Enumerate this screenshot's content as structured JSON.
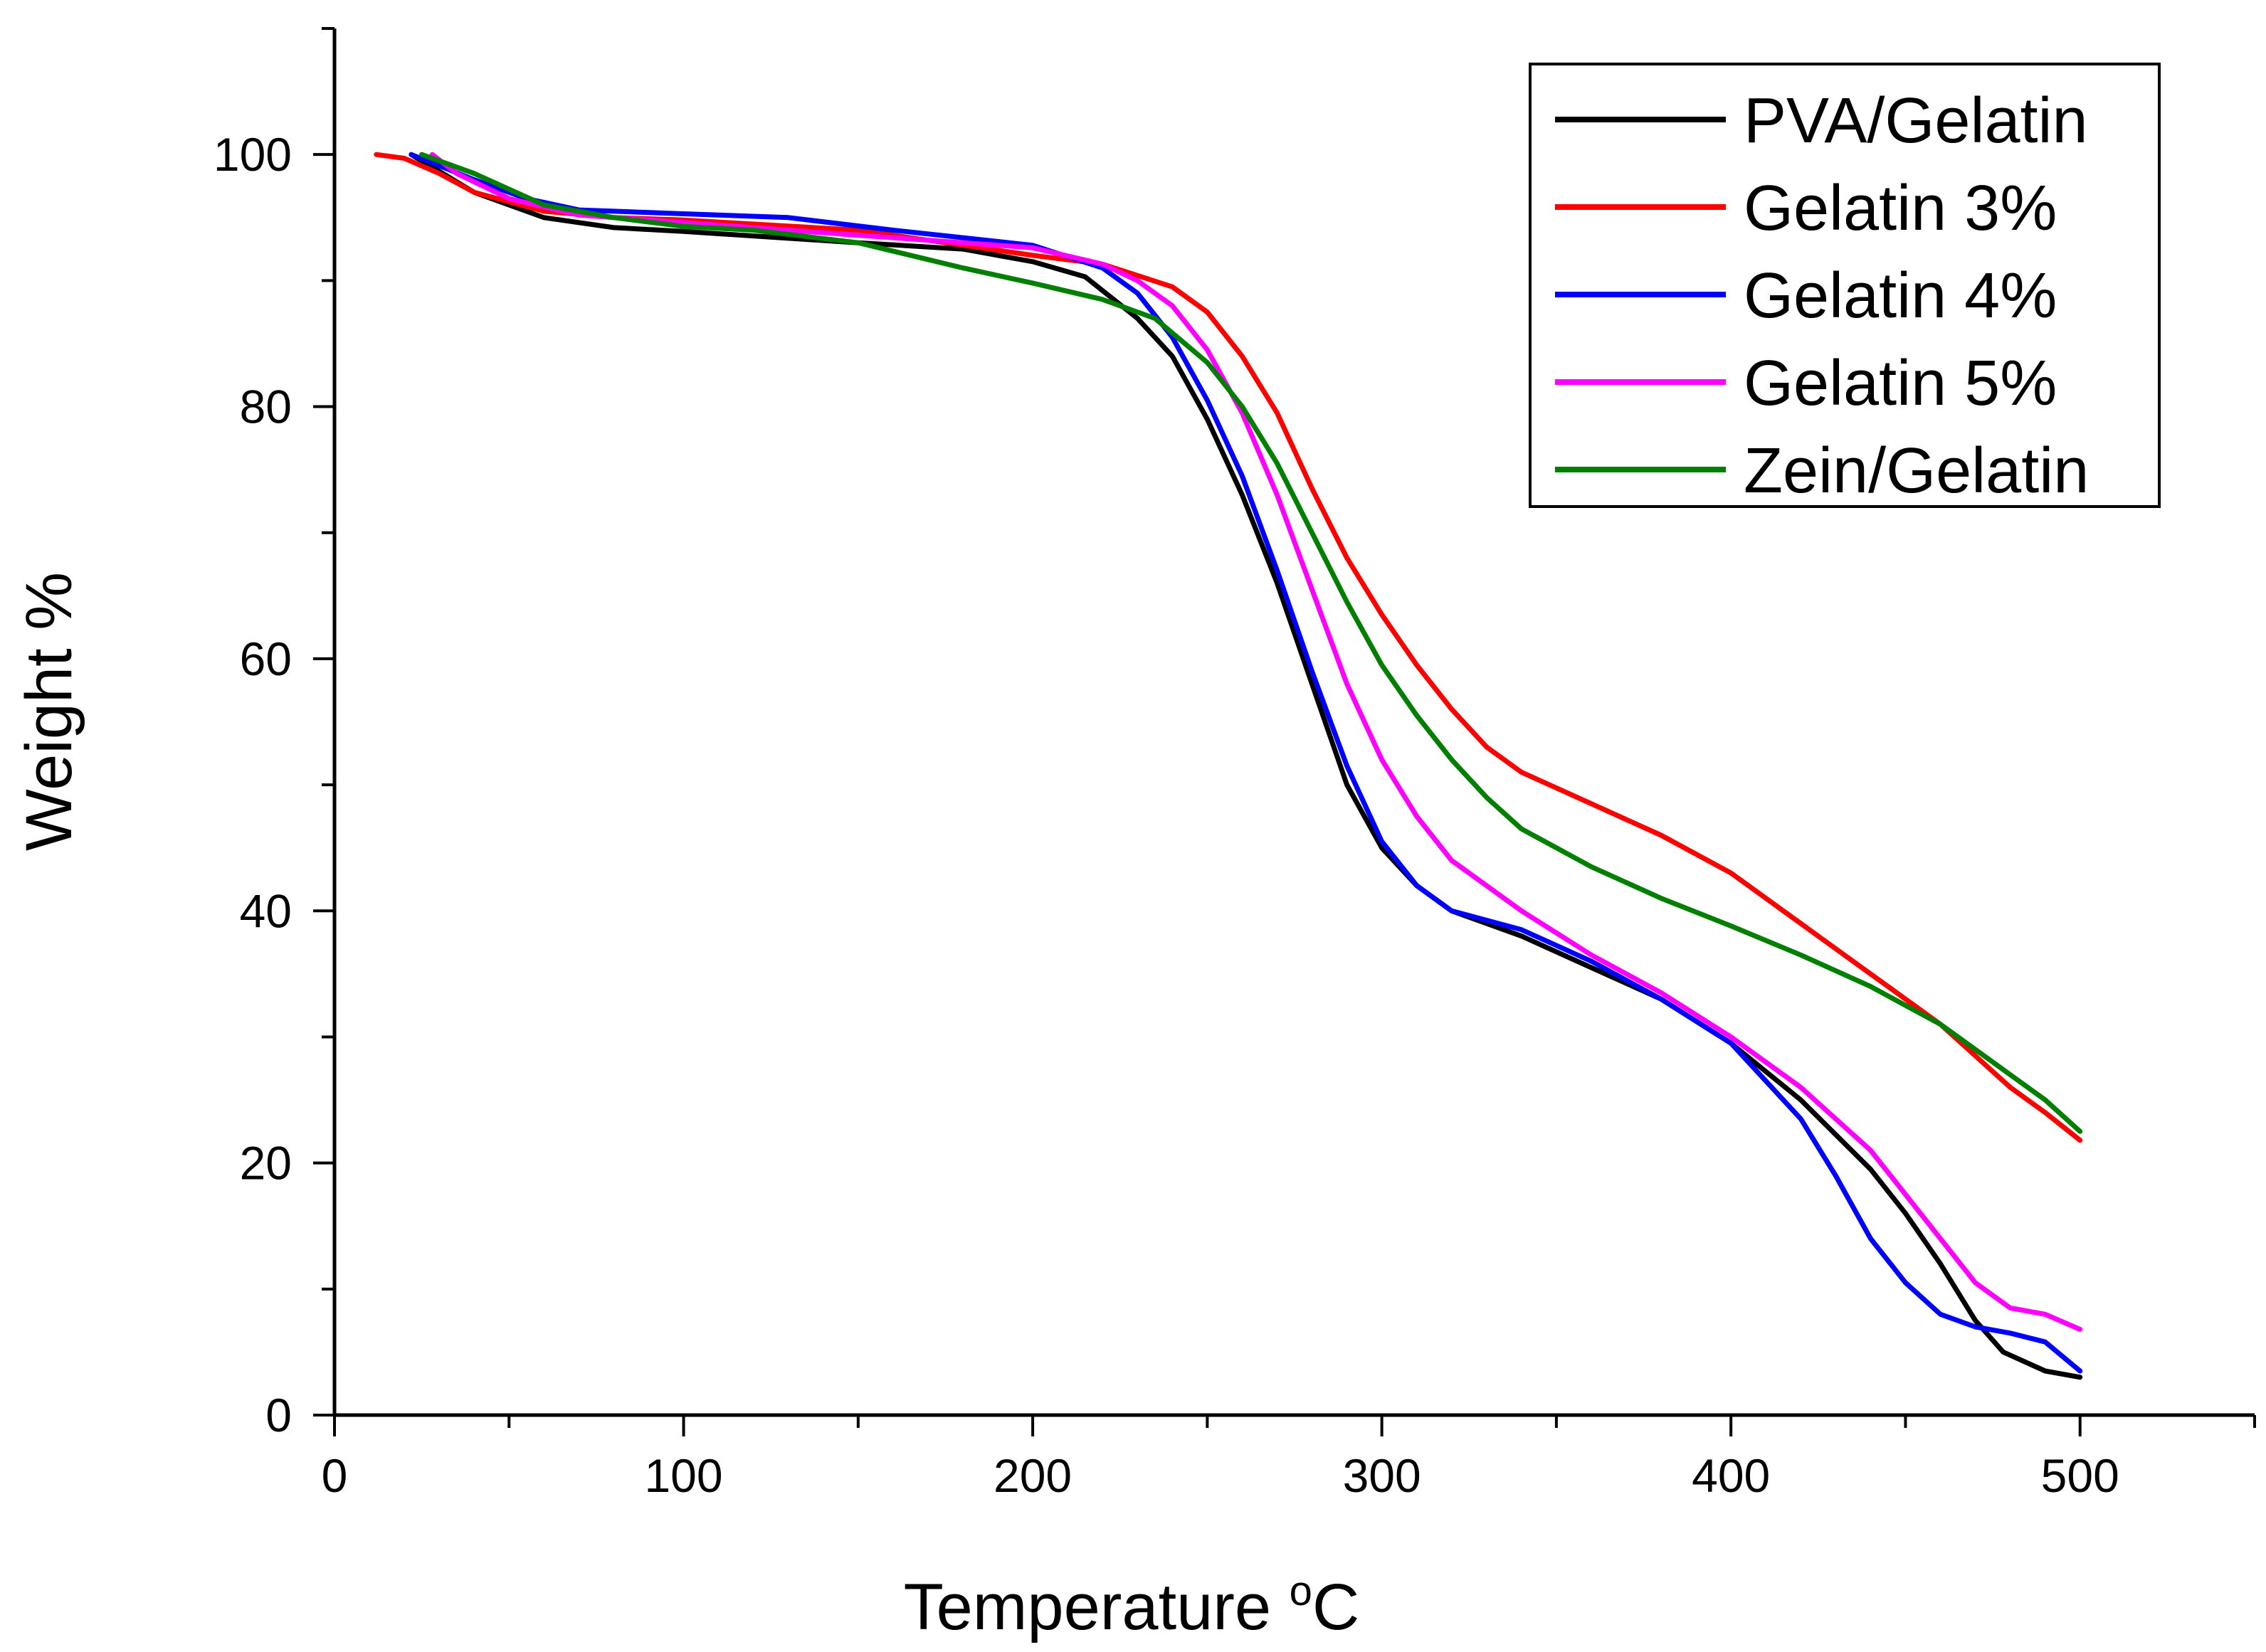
{
  "chart_data": {
    "type": "line",
    "title": "",
    "xlabel": "Temperature",
    "xlabel_unit_superscript": "o",
    "xlabel_unit": "C",
    "ylabel": "Weight %",
    "xlim": [
      0,
      550
    ],
    "ylim": [
      0,
      110
    ],
    "xticks": [
      0,
      100,
      200,
      300,
      400,
      500
    ],
    "yticks": [
      0,
      20,
      40,
      60,
      80,
      100
    ],
    "x_minor_step": 50,
    "y_minor_step": 10,
    "legend_position": "top-right",
    "series": [
      {
        "name": "PVA/Gelatin",
        "color": "#000000",
        "points": [
          [
            22,
            100
          ],
          [
            40,
            97
          ],
          [
            60,
            95
          ],
          [
            80,
            94.2
          ],
          [
            100,
            93.9
          ],
          [
            150,
            93
          ],
          [
            180,
            92.5
          ],
          [
            200,
            91.5
          ],
          [
            215,
            90.3
          ],
          [
            230,
            87
          ],
          [
            240,
            84
          ],
          [
            250,
            79
          ],
          [
            260,
            73
          ],
          [
            270,
            66
          ],
          [
            280,
            58
          ],
          [
            290,
            50
          ],
          [
            300,
            45
          ],
          [
            310,
            42
          ],
          [
            320,
            40
          ],
          [
            340,
            38
          ],
          [
            360,
            35.5
          ],
          [
            380,
            33
          ],
          [
            400,
            29.5
          ],
          [
            420,
            25
          ],
          [
            440,
            19.5
          ],
          [
            450,
            16
          ],
          [
            460,
            12
          ],
          [
            470,
            7.5
          ],
          [
            478,
            5
          ],
          [
            490,
            3.5
          ],
          [
            500,
            3
          ]
        ]
      },
      {
        "name": "Gelatin 3%",
        "color": "#ff0000",
        "points": [
          [
            12,
            100
          ],
          [
            20,
            99.7
          ],
          [
            30,
            98.5
          ],
          [
            40,
            97
          ],
          [
            60,
            95.5
          ],
          [
            80,
            95
          ],
          [
            100,
            94.8
          ],
          [
            150,
            94
          ],
          [
            200,
            92
          ],
          [
            220,
            91.3
          ],
          [
            240,
            89.5
          ],
          [
            250,
            87.5
          ],
          [
            260,
            84
          ],
          [
            270,
            79.5
          ],
          [
            280,
            73.5
          ],
          [
            290,
            68
          ],
          [
            300,
            63.5
          ],
          [
            310,
            59.5
          ],
          [
            320,
            56
          ],
          [
            330,
            53
          ],
          [
            340,
            51
          ],
          [
            360,
            48.5
          ],
          [
            380,
            46
          ],
          [
            400,
            43
          ],
          [
            420,
            39
          ],
          [
            440,
            35
          ],
          [
            460,
            31
          ],
          [
            480,
            26
          ],
          [
            490,
            24
          ],
          [
            500,
            21.8
          ]
        ]
      },
      {
        "name": "Gelatin 4%",
        "color": "#0000ff",
        "points": [
          [
            22,
            100
          ],
          [
            40,
            98
          ],
          [
            55,
            96.5
          ],
          [
            70,
            95.6
          ],
          [
            100,
            95.3
          ],
          [
            130,
            95
          ],
          [
            160,
            94
          ],
          [
            180,
            93.4
          ],
          [
            200,
            92.8
          ],
          [
            220,
            91
          ],
          [
            230,
            89
          ],
          [
            240,
            85.5
          ],
          [
            250,
            80.5
          ],
          [
            260,
            74.5
          ],
          [
            270,
            67
          ],
          [
            280,
            59
          ],
          [
            290,
            51.5
          ],
          [
            300,
            45.5
          ],
          [
            310,
            42
          ],
          [
            320,
            40
          ],
          [
            340,
            38.5
          ],
          [
            360,
            36
          ],
          [
            380,
            33
          ],
          [
            400,
            29.5
          ],
          [
            420,
            23.5
          ],
          [
            430,
            19
          ],
          [
            440,
            14
          ],
          [
            450,
            10.5
          ],
          [
            460,
            8
          ],
          [
            470,
            7
          ],
          [
            480,
            6.5
          ],
          [
            490,
            5.8
          ],
          [
            500,
            3.5
          ]
        ]
      },
      {
        "name": "Gelatin 5%",
        "color": "#ff00ff",
        "points": [
          [
            28,
            100
          ],
          [
            35,
            98.5
          ],
          [
            50,
            96.5
          ],
          [
            70,
            95.2
          ],
          [
            100,
            94.6
          ],
          [
            150,
            93.6
          ],
          [
            180,
            93
          ],
          [
            200,
            92.6
          ],
          [
            220,
            91.3
          ],
          [
            230,
            90
          ],
          [
            240,
            88
          ],
          [
            250,
            84.5
          ],
          [
            260,
            79.5
          ],
          [
            270,
            73
          ],
          [
            280,
            65.5
          ],
          [
            290,
            58
          ],
          [
            300,
            52
          ],
          [
            310,
            47.5
          ],
          [
            320,
            44
          ],
          [
            340,
            40
          ],
          [
            360,
            36.5
          ],
          [
            380,
            33.5
          ],
          [
            400,
            30
          ],
          [
            420,
            26
          ],
          [
            440,
            21
          ],
          [
            450,
            17.5
          ],
          [
            460,
            14
          ],
          [
            470,
            10.5
          ],
          [
            480,
            8.5
          ],
          [
            490,
            8
          ],
          [
            500,
            6.8
          ]
        ]
      },
      {
        "name": "Zein/Gelatin",
        "color": "#007f00",
        "points": [
          [
            25,
            100
          ],
          [
            40,
            98.5
          ],
          [
            60,
            96
          ],
          [
            80,
            95
          ],
          [
            100,
            94.3
          ],
          [
            120,
            94
          ],
          [
            150,
            93
          ],
          [
            180,
            91
          ],
          [
            200,
            89.8
          ],
          [
            220,
            88.5
          ],
          [
            235,
            87
          ],
          [
            250,
            83.5
          ],
          [
            260,
            80
          ],
          [
            270,
            75.5
          ],
          [
            280,
            70
          ],
          [
            290,
            64.5
          ],
          [
            300,
            59.5
          ],
          [
            310,
            55.5
          ],
          [
            320,
            52
          ],
          [
            330,
            49
          ],
          [
            340,
            46.5
          ],
          [
            360,
            43.5
          ],
          [
            380,
            41
          ],
          [
            400,
            38.8
          ],
          [
            420,
            36.5
          ],
          [
            440,
            34
          ],
          [
            460,
            31
          ],
          [
            480,
            27
          ],
          [
            490,
            25
          ],
          [
            500,
            22.5
          ]
        ]
      }
    ]
  }
}
